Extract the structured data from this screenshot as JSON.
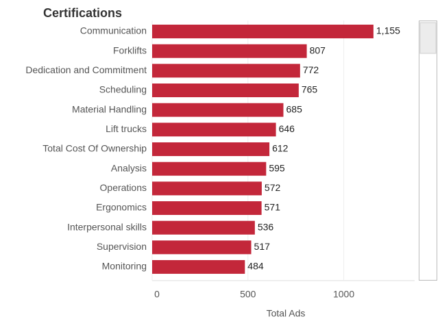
{
  "chart_data": {
    "type": "bar",
    "orientation": "horizontal",
    "title": "Certifications",
    "x_label": "Total Ads",
    "categories": [
      "Communication",
      "Forklifts",
      "Dedication and Commitment",
      "Scheduling",
      "Material Handling",
      "Lift trucks",
      "Total Cost Of Ownership",
      "Analysis",
      "Operations",
      "Ergonomics",
      "Interpersonal skills",
      "Supervision",
      "Monitoring"
    ],
    "values": [
      1155,
      807,
      772,
      765,
      685,
      646,
      612,
      595,
      572,
      571,
      536,
      517,
      484
    ],
    "value_labels": [
      "1,155",
      "807",
      "772",
      "765",
      "685",
      "646",
      "612",
      "595",
      "572",
      "571",
      "536",
      "517",
      "484"
    ],
    "color": "#c3273a",
    "xlim": [
      0,
      1370
    ],
    "xticks": [
      0,
      500,
      1000
    ],
    "grid": true
  }
}
